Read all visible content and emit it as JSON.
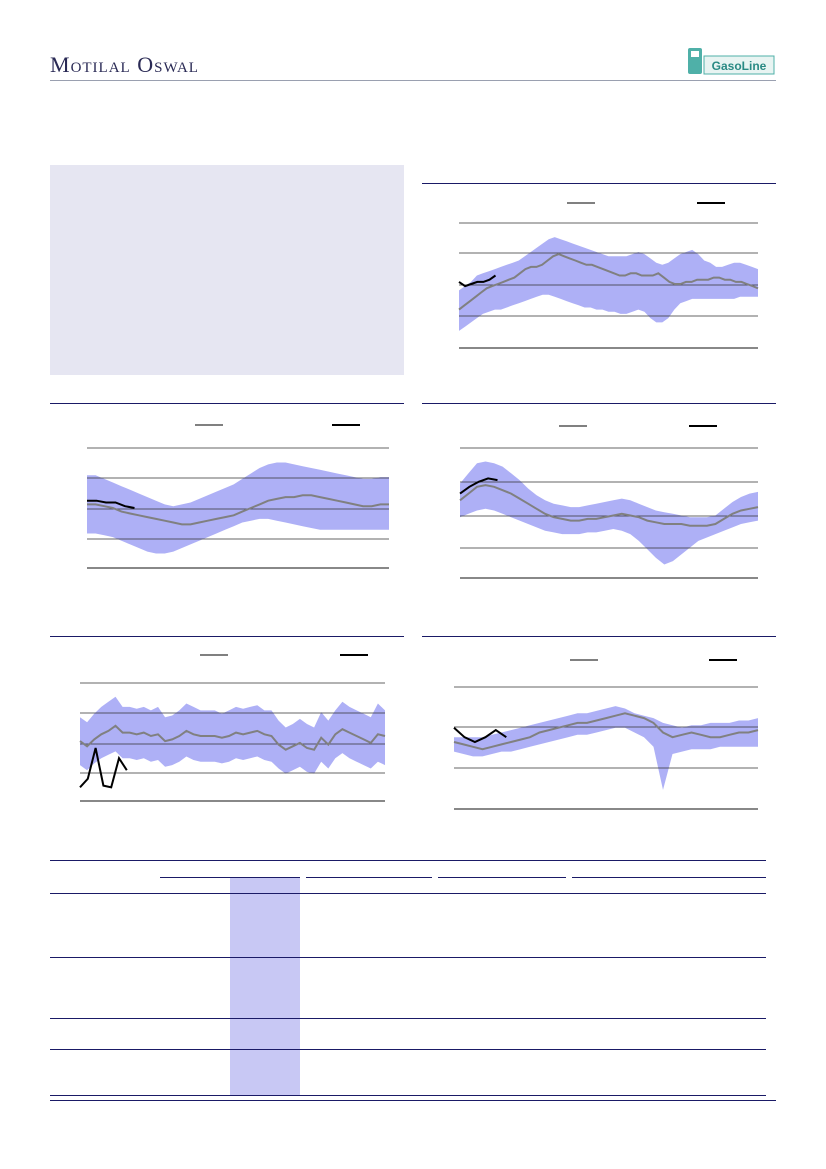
{
  "header": {
    "brand_cap1": "M",
    "brand_rest1": "otilal",
    "brand_cap2": "O",
    "brand_rest2": "swal",
    "logo_text": "GasoLine"
  },
  "colors": {
    "band": "#aeb0f6",
    "hist_line": "#808080",
    "current_line": "#000000",
    "rules": "#1a1a66",
    "highlight": "#c8c8f4"
  },
  "chart_data": [
    {
      "type": "area",
      "series": [
        {
          "values": [
            50,
            52,
            54,
            56,
            58,
            60,
            61,
            62,
            63,
            64,
            65,
            67,
            69,
            70,
            70,
            71,
            73,
            75,
            76,
            75,
            74,
            73,
            72,
            71,
            71,
            70,
            69,
            68,
            67,
            66,
            66,
            67,
            67,
            66,
            66,
            66,
            67,
            65,
            63,
            62,
            62,
            63,
            63,
            64,
            64,
            64,
            65,
            65,
            64,
            64,
            63,
            63,
            62,
            61,
            60
          ]
        },
        {
          "values": [
            59,
            61,
            63,
            66,
            67,
            68,
            69,
            70,
            71,
            72,
            73,
            75,
            77,
            79,
            81,
            83,
            84,
            83,
            82,
            81,
            80,
            79,
            78,
            77,
            76,
            75,
            75,
            75,
            75,
            76,
            77,
            76,
            74,
            72,
            71,
            72,
            74,
            76,
            77,
            78,
            76,
            73,
            72,
            70,
            70,
            71,
            72,
            72,
            71,
            70,
            69
          ]
        },
        {
          "values": [
            40,
            42,
            44,
            46,
            48,
            49,
            50,
            50,
            51,
            52,
            53,
            54,
            55,
            56,
            57,
            57,
            56,
            55,
            54,
            53,
            52,
            51,
            51,
            50,
            50,
            49,
            49,
            48,
            48,
            49,
            50,
            49,
            46,
            44,
            44,
            46,
            50,
            53,
            54,
            55,
            55,
            55,
            55,
            55,
            55,
            55,
            55,
            56,
            56,
            56,
            56
          ]
        },
        {
          "values": [
            63,
            61,
            62,
            63,
            63,
            64,
            66
          ]
        }
      ]
    },
    {
      "type": "area",
      "series": [
        {
          "values": [
            62,
            62,
            61,
            60,
            58,
            57,
            56,
            55,
            54,
            53,
            52,
            51,
            51,
            52,
            53,
            54,
            55,
            56,
            58,
            60,
            62,
            64,
            65,
            66,
            66,
            67,
            67,
            66,
            65,
            64,
            63,
            62,
            61,
            61,
            62,
            62
          ]
        },
        {
          "values": [
            78,
            78,
            76,
            74,
            72,
            70,
            68,
            66,
            64,
            62,
            61,
            62,
            63,
            65,
            67,
            69,
            71,
            73,
            76,
            79,
            82,
            84,
            85,
            85,
            84,
            83,
            82,
            81,
            80,
            79,
            78,
            77,
            76,
            76,
            77,
            77
          ]
        },
        {
          "values": [
            46,
            46,
            45,
            44,
            42,
            40,
            38,
            36,
            35,
            35,
            36,
            38,
            40,
            42,
            44,
            46,
            48,
            50,
            52,
            53,
            54,
            54,
            53,
            52,
            51,
            50,
            49,
            48,
            48,
            48,
            48,
            48,
            48,
            48,
            48,
            48
          ]
        },
        {
          "values": [
            64,
            64,
            63,
            63,
            61,
            60
          ]
        }
      ]
    },
    {
      "type": "area",
      "series": [
        {
          "values": [
            62,
            66,
            70,
            71,
            70,
            68,
            66,
            63,
            60,
            57,
            54,
            52,
            51,
            50,
            50,
            51,
            51,
            52,
            53,
            54,
            53,
            52,
            50,
            49,
            48,
            48,
            48,
            47,
            47,
            47,
            48,
            51,
            54,
            56,
            57,
            58
          ]
        },
        {
          "values": [
            72,
            78,
            84,
            85,
            84,
            82,
            78,
            74,
            69,
            65,
            62,
            60,
            59,
            58,
            58,
            59,
            60,
            61,
            62,
            63,
            62,
            60,
            58,
            56,
            55,
            54,
            53,
            52,
            52,
            52,
            53,
            57,
            61,
            64,
            66,
            67
          ]
        },
        {
          "values": [
            52,
            54,
            56,
            57,
            56,
            54,
            52,
            50,
            48,
            46,
            44,
            43,
            42,
            42,
            42,
            43,
            43,
            44,
            45,
            44,
            42,
            38,
            33,
            28,
            24,
            26,
            30,
            34,
            38,
            40,
            42,
            44,
            46,
            48,
            49,
            50
          ]
        },
        {
          "values": [
            66,
            70,
            73,
            75,
            74
          ]
        }
      ]
    },
    {
      "type": "area",
      "series": [
        {
          "values": [
            52,
            49,
            53,
            56,
            58,
            61,
            57,
            57,
            56,
            57,
            55,
            56,
            52,
            53,
            55,
            58,
            56,
            55,
            55,
            55,
            54,
            55,
            57,
            56,
            57,
            58,
            56,
            55,
            50,
            47,
            49,
            51,
            48,
            47,
            54,
            50,
            56,
            59,
            57,
            55,
            53,
            51,
            56,
            55
          ]
        },
        {
          "values": [
            66,
            63,
            68,
            72,
            75,
            78,
            72,
            72,
            71,
            72,
            70,
            72,
            66,
            67,
            70,
            74,
            72,
            70,
            70,
            70,
            68,
            70,
            72,
            71,
            72,
            73,
            70,
            70,
            64,
            60,
            62,
            65,
            62,
            60,
            69,
            64,
            70,
            75,
            72,
            70,
            68,
            66,
            74,
            70
          ]
        },
        {
          "values": [
            38,
            35,
            39,
            42,
            44,
            46,
            42,
            42,
            41,
            42,
            40,
            41,
            37,
            38,
            40,
            43,
            41,
            40,
            40,
            40,
            39,
            40,
            42,
            41,
            42,
            43,
            41,
            40,
            36,
            33,
            35,
            37,
            34,
            33,
            40,
            36,
            42,
            45,
            42,
            40,
            38,
            36,
            40,
            38
          ]
        },
        {
          "values": [
            25,
            30,
            48,
            26,
            25,
            42,
            35
          ]
        }
      ]
    },
    {
      "type": "area",
      "series": [
        {
          "values": [
            60,
            59,
            58,
            57,
            58,
            59,
            60,
            61,
            62,
            64,
            65,
            66,
            67,
            68,
            68,
            69,
            70,
            71,
            72,
            71,
            70,
            68,
            64,
            62,
            63,
            64,
            63,
            62,
            62,
            63,
            64,
            64,
            65
          ]
        },
        {
          "values": [
            62,
            62,
            62,
            62,
            63,
            64,
            65,
            66,
            67,
            68,
            69,
            70,
            71,
            72,
            72,
            73,
            74,
            75,
            74,
            72,
            71,
            70,
            68,
            67,
            66,
            67,
            67,
            68,
            68,
            68,
            69,
            69,
            70
          ]
        },
        {
          "values": [
            56,
            55,
            54,
            54,
            55,
            56,
            56,
            57,
            58,
            59,
            60,
            61,
            62,
            63,
            63,
            64,
            65,
            66,
            66,
            64,
            62,
            58,
            40,
            55,
            56,
            57,
            57,
            57,
            58,
            58,
            58,
            58,
            58
          ]
        },
        {
          "values": [
            66,
            62,
            60,
            62,
            65,
            62
          ]
        }
      ]
    }
  ]
}
